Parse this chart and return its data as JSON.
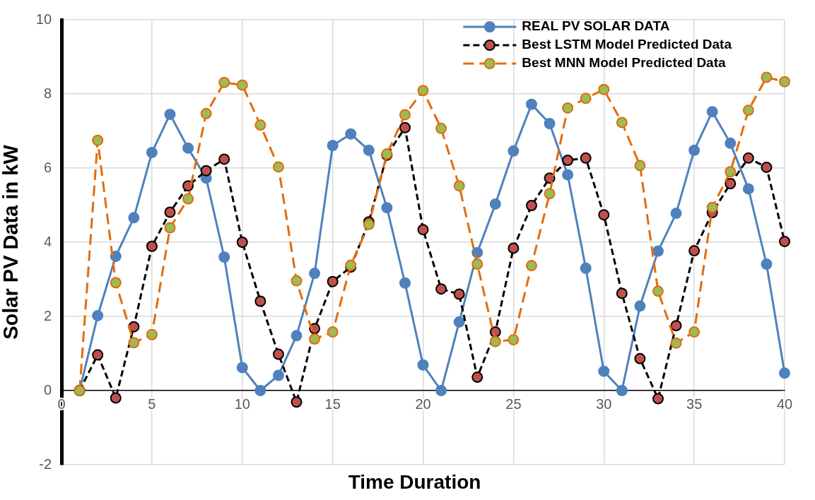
{
  "chart_data": {
    "type": "line",
    "xlabel": "Time Duration",
    "ylabel": "Solar PV Data in kW",
    "x": [
      1,
      2,
      3,
      4,
      5,
      6,
      7,
      8,
      9,
      10,
      11,
      12,
      13,
      14,
      15,
      16,
      17,
      18,
      19,
      20,
      21,
      22,
      23,
      24,
      25,
      26,
      27,
      28,
      29,
      30,
      31,
      32,
      33,
      34,
      35,
      36,
      37,
      38,
      39,
      40
    ],
    "xlim": [
      0,
      40
    ],
    "xticks": [
      0,
      5,
      10,
      15,
      20,
      25,
      30,
      35,
      40
    ],
    "ylim": [
      -2,
      10
    ],
    "yticks": [
      -2,
      0,
      2,
      4,
      6,
      8,
      10
    ],
    "grid": true,
    "legend": "top right",
    "marker": "circle",
    "series": [
      {
        "name": "REAL PV SOLAR DATA",
        "color": "#4f81bd",
        "line_style": "solid",
        "values": [
          0,
          2.02,
          3.62,
          4.66,
          6.42,
          7.45,
          6.54,
          5.73,
          3.6,
          0.62,
          0,
          0.41,
          1.48,
          3.16,
          6.61,
          6.92,
          6.48,
          4.93,
          2.9,
          0.69,
          0,
          1.85,
          3.72,
          5.03,
          6.46,
          7.72,
          7.2,
          5.82,
          3.3,
          0.52,
          0,
          2.28,
          3.76,
          4.78,
          6.48,
          7.52,
          6.67,
          5.44,
          3.41,
          0.47
        ]
      },
      {
        "name": "Best LSTM Model Predicted Data",
        "color": "#000000",
        "colors": [
          "#c0504d",
          "#c0504d",
          "#c0504d",
          "#c0504d",
          "#c0504d",
          "#c0504d",
          "#c0504d",
          "#c0504d",
          "#c0504d",
          "#c0504d",
          "#c0504d",
          "#c0504d",
          "#c0504d",
          "#c0504d",
          "#c0504d",
          "#c0504d",
          "#c0504d",
          "#c0504d",
          "#c0504d",
          "#c0504d",
          "#c0504d",
          "#c0504d",
          "#c0504d",
          "#c0504d",
          "#c0504d",
          "#c0504d",
          "#c0504d",
          "#c0504d",
          "#c0504d",
          "#c0504d",
          "#c0504d",
          "#c0504d",
          "#c0504d",
          "#c0504d",
          "#c0504d",
          "#c0504d",
          "#c0504d",
          "#c0504d",
          "#c0504d",
          "#c0504d"
        ],
        "line_style": "dashed",
        "values": [
          0,
          0.96,
          -0.2,
          1.72,
          3.89,
          4.81,
          5.52,
          5.93,
          6.24,
          4,
          2.41,
          0.98,
          -0.31,
          1.67,
          2.94,
          3.33,
          4.55,
          6.35,
          7.09,
          4.34,
          2.74,
          2.6,
          0.36,
          1.58,
          3.84,
          4.99,
          5.73,
          6.21,
          6.27,
          4.74,
          2.62,
          0.86,
          -0.22,
          1.75,
          3.77,
          4.8,
          5.58,
          6.27,
          6.02,
          4.02
        ]
      },
      {
        "name": "Best MNN Model Predicted Data",
        "color": "#e46c0a",
        "colors": [
          "#9bbb59",
          "#9bbb59",
          "#9bbb59",
          "#9bbb59",
          "#9bbb59",
          "#9bbb59",
          "#9bbb59",
          "#9bbb59",
          "#9bbb59",
          "#9bbb59",
          "#9bbb59",
          "#9bbb59",
          "#9bbb59",
          "#9bbb59",
          "#9bbb59",
          "#9bbb59",
          "#9bbb59",
          "#9bbb59",
          "#9bbb59",
          "#9bbb59",
          "#9bbb59",
          "#9bbb59",
          "#9bbb59",
          "#9bbb59",
          "#9bbb59",
          "#9bbb59",
          "#9bbb59",
          "#9bbb59",
          "#9bbb59",
          "#9bbb59",
          "#9bbb59",
          "#9bbb59",
          "#9bbb59",
          "#9bbb59",
          "#9bbb59",
          "#9bbb59",
          "#9bbb59",
          "#9bbb59",
          "#9bbb59",
          "#9bbb59"
        ],
        "line_style": "dashed",
        "values": [
          0,
          6.75,
          2.91,
          1.29,
          1.51,
          4.39,
          5.17,
          7.47,
          8.31,
          8.24,
          7.16,
          6.03,
          2.96,
          1.39,
          1.58,
          3.38,
          4.48,
          6.38,
          7.44,
          8.09,
          7.07,
          5.52,
          3.41,
          1.32,
          1.37,
          3.37,
          5.31,
          7.62,
          7.88,
          8.12,
          7.23,
          6.07,
          2.68,
          1.28,
          1.58,
          4.94,
          5.9,
          7.56,
          8.45,
          8.33
        ]
      }
    ]
  }
}
